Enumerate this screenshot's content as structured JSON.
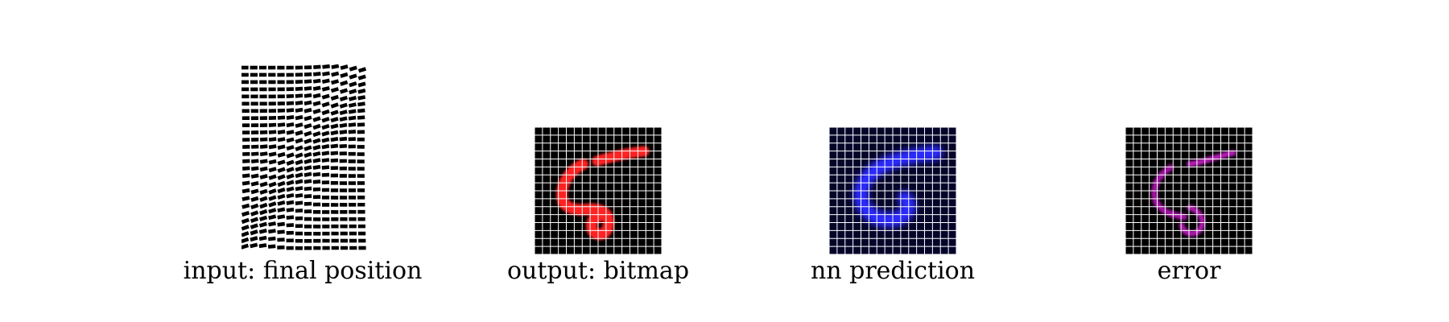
{
  "panels": [
    {
      "id": "input",
      "caption": "input: final position"
    },
    {
      "id": "output",
      "caption": "output: bitmap"
    },
    {
      "id": "prediction",
      "caption": "nn prediction"
    },
    {
      "id": "error",
      "caption": "error"
    }
  ],
  "colors": {
    "background": "#000000",
    "grid": "#ffffff",
    "output_stroke": "#ff2020",
    "prediction_stroke": "#2a2aff",
    "prediction_background": "#05052a",
    "error_stroke": "#d020d0"
  }
}
